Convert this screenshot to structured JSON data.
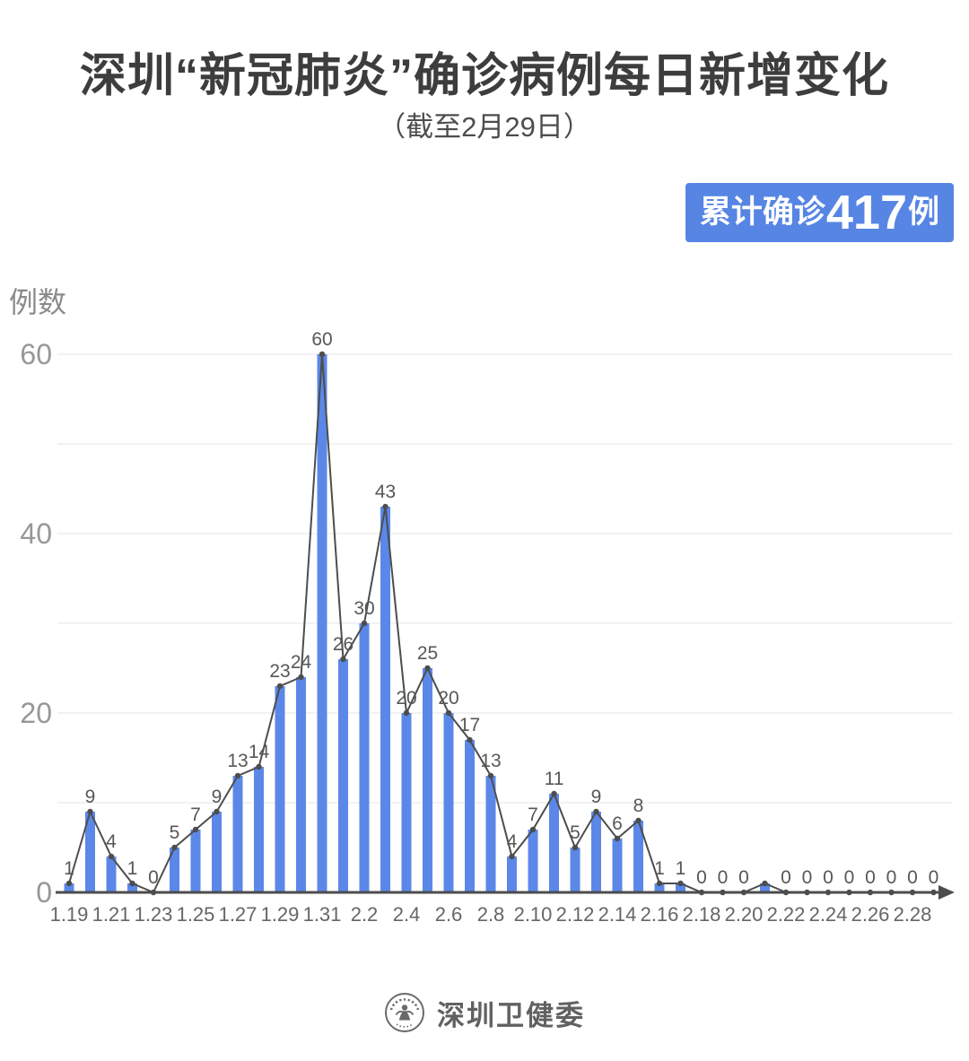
{
  "title": "深圳“新冠肺炎”确诊病例每日新增变化",
  "subtitle": "（截至2月29日）",
  "badge": {
    "prefix": "累计确诊",
    "number": "417",
    "suffix": "例",
    "bg_color": "#5685E4",
    "text_color": "#FFFFFF"
  },
  "footer": {
    "org": "深圳卫健委"
  },
  "chart_data": {
    "type": "bar",
    "title": "深圳“新冠肺炎”确诊病例每日新增变化（截至2月29日）",
    "ylabel": "例数",
    "xlabel": "",
    "ylim": [
      0,
      60
    ],
    "y_ticks": [
      0,
      20,
      40,
      60
    ],
    "grid_step": 10,
    "grid": true,
    "legend": "none",
    "x": [
      "1.19",
      "1.20",
      "1.21",
      "1.22",
      "1.23",
      "1.24",
      "1.25",
      "1.26",
      "1.27",
      "1.28",
      "1.29",
      "1.30",
      "1.31",
      "2.1",
      "2.2",
      "2.3",
      "2.4",
      "2.5",
      "2.6",
      "2.7",
      "2.8",
      "2.9",
      "2.10",
      "2.11",
      "2.12",
      "2.13",
      "2.14",
      "2.15",
      "2.16",
      "2.17",
      "2.18",
      "2.19",
      "2.20",
      "2.21",
      "2.22",
      "2.23",
      "2.24",
      "2.25",
      "2.26",
      "2.27",
      "2.28",
      "2.29"
    ],
    "values": [
      1,
      9,
      4,
      1,
      0,
      5,
      7,
      9,
      13,
      14,
      23,
      24,
      60,
      26,
      30,
      43,
      20,
      25,
      20,
      17,
      13,
      4,
      7,
      11,
      5,
      9,
      6,
      8,
      1,
      1,
      0,
      0,
      0,
      1,
      0,
      0,
      0,
      0,
      0,
      0,
      0,
      0
    ],
    "x_ticks_shown": [
      "1.19",
      "1.21",
      "1.23",
      "1.25",
      "1.27",
      "1.29",
      "1.31",
      "2.2",
      "2.4",
      "2.6",
      "2.8",
      "2.10",
      "2.12",
      "2.14",
      "2.16",
      "2.18",
      "2.20",
      "2.22",
      "2.24",
      "2.26",
      "2.28"
    ],
    "value_labels_hidden": [
      "2.21"
    ],
    "bar_color": "#5B88E8",
    "line_color": "#4D4D4D",
    "grid_color": "#E4E4E4"
  }
}
